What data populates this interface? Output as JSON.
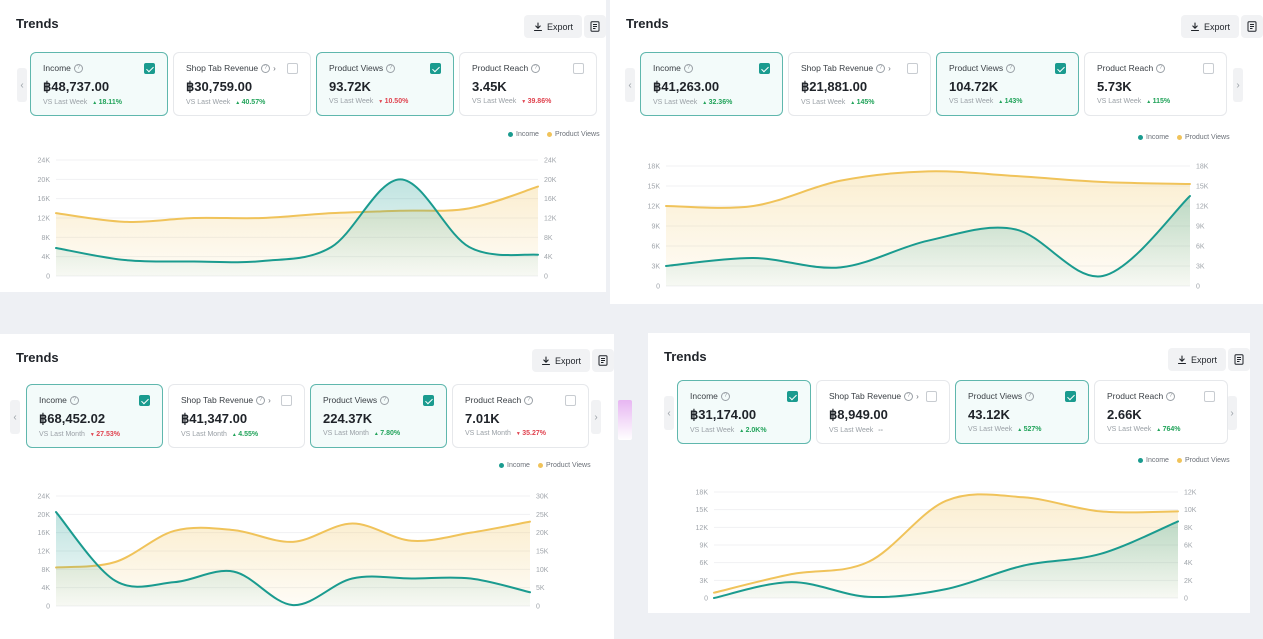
{
  "panels": [
    {
      "title": "Trends",
      "export_label": "Export",
      "legend": {
        "income": "Income",
        "views": "Product Views"
      },
      "cards": [
        {
          "label": "Income",
          "value": "฿48,737.00",
          "period": "VS Last Week",
          "delta": "18.11%",
          "trend": "up",
          "checked": true,
          "chevron": false
        },
        {
          "label": "Shop Tab Revenue",
          "value": "฿30,759.00",
          "period": "VS Last Week",
          "delta": "40.57%",
          "trend": "up",
          "checked": false,
          "chevron": true
        },
        {
          "label": "Product Views",
          "value": "93.72K",
          "period": "VS Last Week",
          "delta": "10.50%",
          "trend": "down",
          "checked": true,
          "chevron": false
        },
        {
          "label": "Product Reach",
          "value": "3.45K",
          "period": "VS Last Week",
          "delta": "39.86%",
          "trend": "down",
          "checked": false,
          "chevron": false
        }
      ],
      "chart_data": {
        "type": "area",
        "y_left_ticks": [
          "0",
          "4K",
          "8K",
          "12K",
          "16K",
          "20K",
          "24K"
        ],
        "y_right_ticks": [
          "0",
          "4K",
          "8K",
          "12K",
          "16K",
          "20K",
          "24K"
        ],
        "y_left_max": 24000,
        "y_right_max": 24000,
        "series": [
          {
            "name": "Income",
            "values": [
              5800,
              3300,
              3000,
              3100,
              6000,
              20000,
              6000,
              4400
            ],
            "color": "#1a9b8f"
          },
          {
            "name": "Product Views",
            "values": [
              13000,
              11200,
              12000,
              12000,
              13000,
              13500,
              14000,
              18500
            ],
            "color": "#f0c35a"
          }
        ]
      }
    },
    {
      "title": "Trends",
      "export_label": "Export",
      "legend": {
        "income": "Income",
        "views": "Product Views"
      },
      "cards": [
        {
          "label": "Income",
          "value": "฿41,263.00",
          "period": "VS Last Week",
          "delta": "32.36%",
          "trend": "up",
          "checked": true,
          "chevron": false
        },
        {
          "label": "Shop Tab Revenue",
          "value": "฿21,881.00",
          "period": "VS Last Week",
          "delta": "145%",
          "trend": "up",
          "checked": false,
          "chevron": true
        },
        {
          "label": "Product Views",
          "value": "104.72K",
          "period": "VS Last Week",
          "delta": "143%",
          "trend": "up",
          "checked": true,
          "chevron": false
        },
        {
          "label": "Product Reach",
          "value": "5.73K",
          "period": "VS Last Week",
          "delta": "115%",
          "trend": "up",
          "checked": false,
          "chevron": false
        }
      ],
      "chart_data": {
        "type": "area",
        "y_left_ticks": [
          "0",
          "3K",
          "6K",
          "9K",
          "12K",
          "15K",
          "18K"
        ],
        "y_right_ticks": [
          "0",
          "3K",
          "6K",
          "9K",
          "12K",
          "15K",
          "18K"
        ],
        "y_left_max": 18000,
        "y_right_max": 18000,
        "series": [
          {
            "name": "Income",
            "values": [
              3000,
              4200,
              2800,
              6800,
              8500,
              1500,
              13500
            ],
            "color": "#1a9b8f"
          },
          {
            "name": "Product Views",
            "values": [
              12000,
              12000,
              15800,
              17200,
              16500,
              15600,
              15300
            ],
            "color": "#f0c35a"
          }
        ]
      }
    },
    {
      "title": "Trends",
      "export_label": "Export",
      "legend": {
        "income": "Income",
        "views": "Product Views"
      },
      "cards": [
        {
          "label": "Income",
          "value": "฿68,452.02",
          "period": "VS Last Month",
          "delta": "27.53%",
          "trend": "down",
          "checked": true,
          "chevron": false
        },
        {
          "label": "Shop Tab Revenue",
          "value": "฿41,347.00",
          "period": "VS Last Month",
          "delta": "4.55%",
          "trend": "up",
          "checked": false,
          "chevron": true
        },
        {
          "label": "Product Views",
          "value": "224.37K",
          "period": "VS Last Month",
          "delta": "7.80%",
          "trend": "up",
          "checked": true,
          "chevron": false
        },
        {
          "label": "Product Reach",
          "value": "7.01K",
          "period": "VS Last Month",
          "delta": "35.27%",
          "trend": "down",
          "checked": false,
          "chevron": false
        }
      ],
      "chart_data": {
        "type": "area",
        "y_left_ticks": [
          "0",
          "4K",
          "8K",
          "12K",
          "16K",
          "20K",
          "24K"
        ],
        "y_right_ticks": [
          "0",
          "5K",
          "10K",
          "15K",
          "20K",
          "25K",
          "30K"
        ],
        "y_left_max": 24000,
        "y_right_max": 30000,
        "series": [
          {
            "name": "Income",
            "values": [
              20500,
              5500,
              5200,
              7500,
              200,
              6000,
              6000,
              6000,
              3000
            ],
            "color": "#1a9b8f"
          },
          {
            "name": "Product Views",
            "values": [
              10500,
              12000,
              20500,
              20700,
              17500,
              22500,
              17800,
              20000,
              23000
            ],
            "color": "#f0c35a"
          }
        ]
      }
    },
    {
      "title": "Trends",
      "export_label": "Export",
      "legend": {
        "income": "Income",
        "views": "Product Views"
      },
      "cards": [
        {
          "label": "Income",
          "value": "฿31,174.00",
          "period": "VS Last Week",
          "delta": "2.0K%",
          "trend": "up",
          "checked": true,
          "chevron": false
        },
        {
          "label": "Shop Tab Revenue",
          "value": "฿8,949.00",
          "period": "VS Last Week",
          "delta": "--",
          "trend": "flat",
          "checked": false,
          "chevron": true
        },
        {
          "label": "Product Views",
          "value": "43.12K",
          "period": "VS Last Week",
          "delta": "527%",
          "trend": "up",
          "checked": true,
          "chevron": false
        },
        {
          "label": "Product Reach",
          "value": "2.66K",
          "period": "VS Last Week",
          "delta": "764%",
          "trend": "up",
          "checked": false,
          "chevron": false
        }
      ],
      "chart_data": {
        "type": "area",
        "y_left_ticks": [
          "0",
          "3K",
          "6K",
          "9K",
          "12K",
          "15K",
          "18K"
        ],
        "y_right_ticks": [
          "0",
          "2K",
          "4K",
          "6K",
          "8K",
          "10K",
          "12K"
        ],
        "y_left_max": 18000,
        "y_right_max": 12000,
        "series": [
          {
            "name": "Income",
            "values": [
              0,
              2700,
              200,
              1500,
              5500,
              7500,
              13000
            ],
            "color": "#1a9b8f"
          },
          {
            "name": "Product Views",
            "values": [
              600,
              2700,
              4100,
              11000,
              11400,
              9800,
              9800
            ],
            "color": "#f0c35a"
          }
        ]
      }
    }
  ],
  "colors": {
    "accent": "#1a9b8f",
    "views": "#f0c35a",
    "up": "#21a35a",
    "down": "#e0434f"
  },
  "icons": {
    "export": "download-icon",
    "doc": "document-icon",
    "help": "help-circle-icon"
  }
}
